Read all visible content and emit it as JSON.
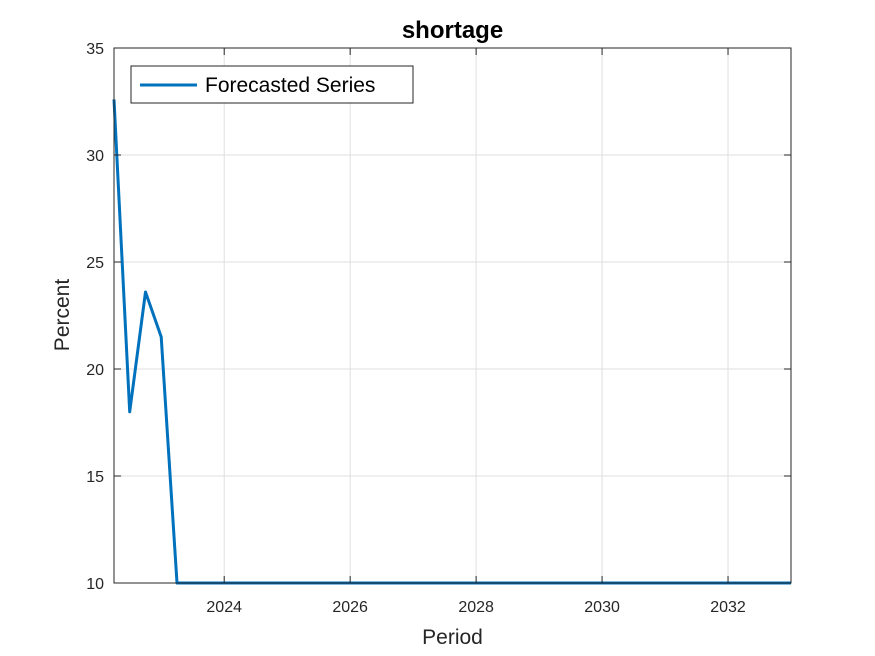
{
  "chart_data": {
    "type": "line",
    "title": "shortage",
    "xlabel": "Period",
    "ylabel": "Percent",
    "xlim": [
      2022.25,
      2033.0
    ],
    "ylim": [
      10,
      35
    ],
    "xticks": [
      2024,
      2026,
      2028,
      2030,
      2032
    ],
    "yticks": [
      10,
      15,
      20,
      25,
      30,
      35
    ],
    "grid": true,
    "legend_position": "top-left",
    "series": [
      {
        "name": "Forecasted Series",
        "color": "#0072BD",
        "x": [
          2022.25,
          2022.5,
          2022.75,
          2023.0,
          2023.25,
          2024.0,
          2026.0,
          2028.0,
          2030.0,
          2032.0,
          2033.0
        ],
        "values": [
          32.6,
          18.0,
          23.6,
          21.5,
          10.0,
          10.0,
          10.0,
          10.0,
          10.0,
          10.0,
          10.0
        ]
      }
    ]
  }
}
